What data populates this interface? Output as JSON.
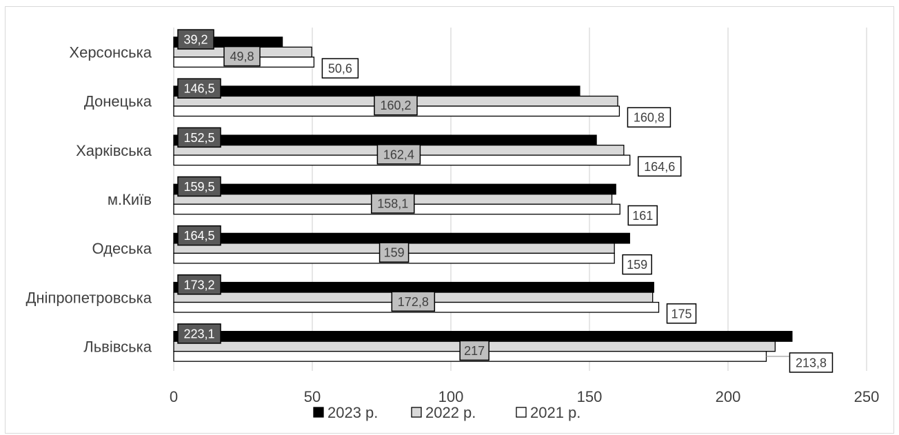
{
  "chart_data": {
    "type": "bar",
    "orientation": "horizontal",
    "categories": [
      "Херсонська",
      "Донецька",
      "Харківська",
      "м.Київ",
      "Одеська",
      "Дніпропетровська",
      "Львівська"
    ],
    "series": [
      {
        "name": "2023 р.",
        "values": [
          39.2,
          146.5,
          152.5,
          159.5,
          164.5,
          173.2,
          223.1
        ],
        "labels": [
          "39,2",
          "146,5",
          "152,5",
          "159,5",
          "164,5",
          "173,2",
          "223,1"
        ],
        "color": "#000000",
        "label_bg": "#595959",
        "label_color": "#ffffff"
      },
      {
        "name": "2022 р.",
        "values": [
          49.8,
          160.2,
          162.4,
          158.1,
          159,
          172.8,
          217
        ],
        "labels": [
          "49,8",
          "160,2",
          "162,4",
          "158,1",
          "159",
          "172,8",
          "217"
        ],
        "color": "#d9d9d9",
        "label_bg": "#bfbfbf",
        "label_color": "#404040"
      },
      {
        "name": "2021 р.",
        "values": [
          50.6,
          160.8,
          164.6,
          161,
          159,
          175,
          213.8
        ],
        "labels": [
          "50,6",
          "160,8",
          "164,6",
          "161",
          "159",
          "175",
          "213,8"
        ],
        "color": "#ffffff",
        "label_bg": "#ffffff",
        "label_color": "#404040"
      }
    ],
    "xlim": [
      0,
      250
    ],
    "xticks": [
      "0",
      "50",
      "100",
      "150",
      "200",
      "250"
    ],
    "grid": true,
    "legend_position": "bottom"
  }
}
